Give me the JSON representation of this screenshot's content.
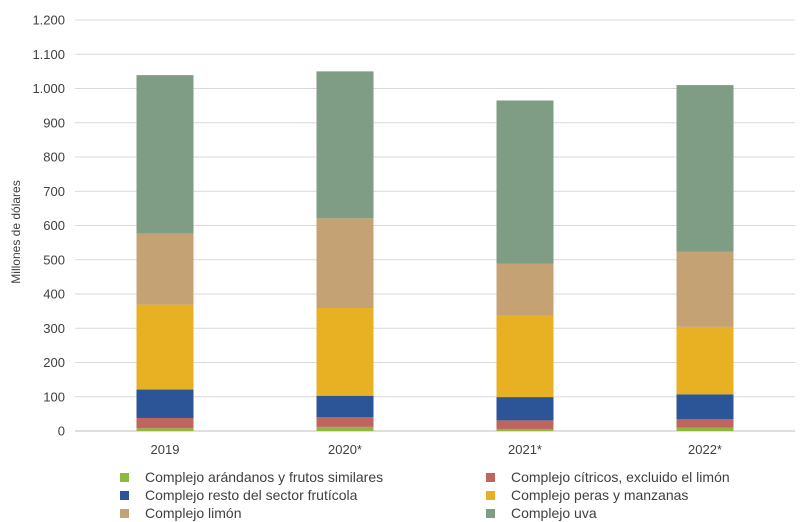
{
  "chart_data": {
    "type": "bar",
    "stacked": true,
    "categories": [
      "2019",
      "2020*",
      "2021*",
      "2022*"
    ],
    "ylabel": "Millones de dólares",
    "ylim": [
      0,
      1200
    ],
    "yticks": [
      0,
      100,
      200,
      300,
      400,
      500,
      600,
      700,
      800,
      900,
      1000,
      1100,
      1200
    ],
    "ytick_labels": [
      "0",
      "100",
      "200",
      "300",
      "400",
      "500",
      "600",
      "700",
      "800",
      "900",
      "1.000",
      "1.100",
      "1.200"
    ],
    "grid": true,
    "legend_position": "bottom",
    "series": [
      {
        "name": "Complejo arándanos y frutos similares",
        "color": "#8fb83f",
        "values": [
          8,
          12,
          6,
          10
        ]
      },
      {
        "name": "Complejo cítricos, excluido el limón",
        "color": "#c0645f",
        "values": [
          30,
          28,
          25,
          25
        ]
      },
      {
        "name": "Complejo resto del sector frutícola",
        "color": "#2c5597",
        "values": [
          83,
          63,
          68,
          72
        ]
      },
      {
        "name": "Complejo peras y manzanas",
        "color": "#e8b023",
        "values": [
          248,
          256,
          238,
          197
        ]
      },
      {
        "name": "Complejo limón",
        "color": "#c4a273",
        "values": [
          207,
          262,
          151,
          219
        ]
      },
      {
        "name": "Complejo uva",
        "color": "#7f9c85",
        "values": [
          463,
          429,
          477,
          487
        ]
      }
    ]
  }
}
